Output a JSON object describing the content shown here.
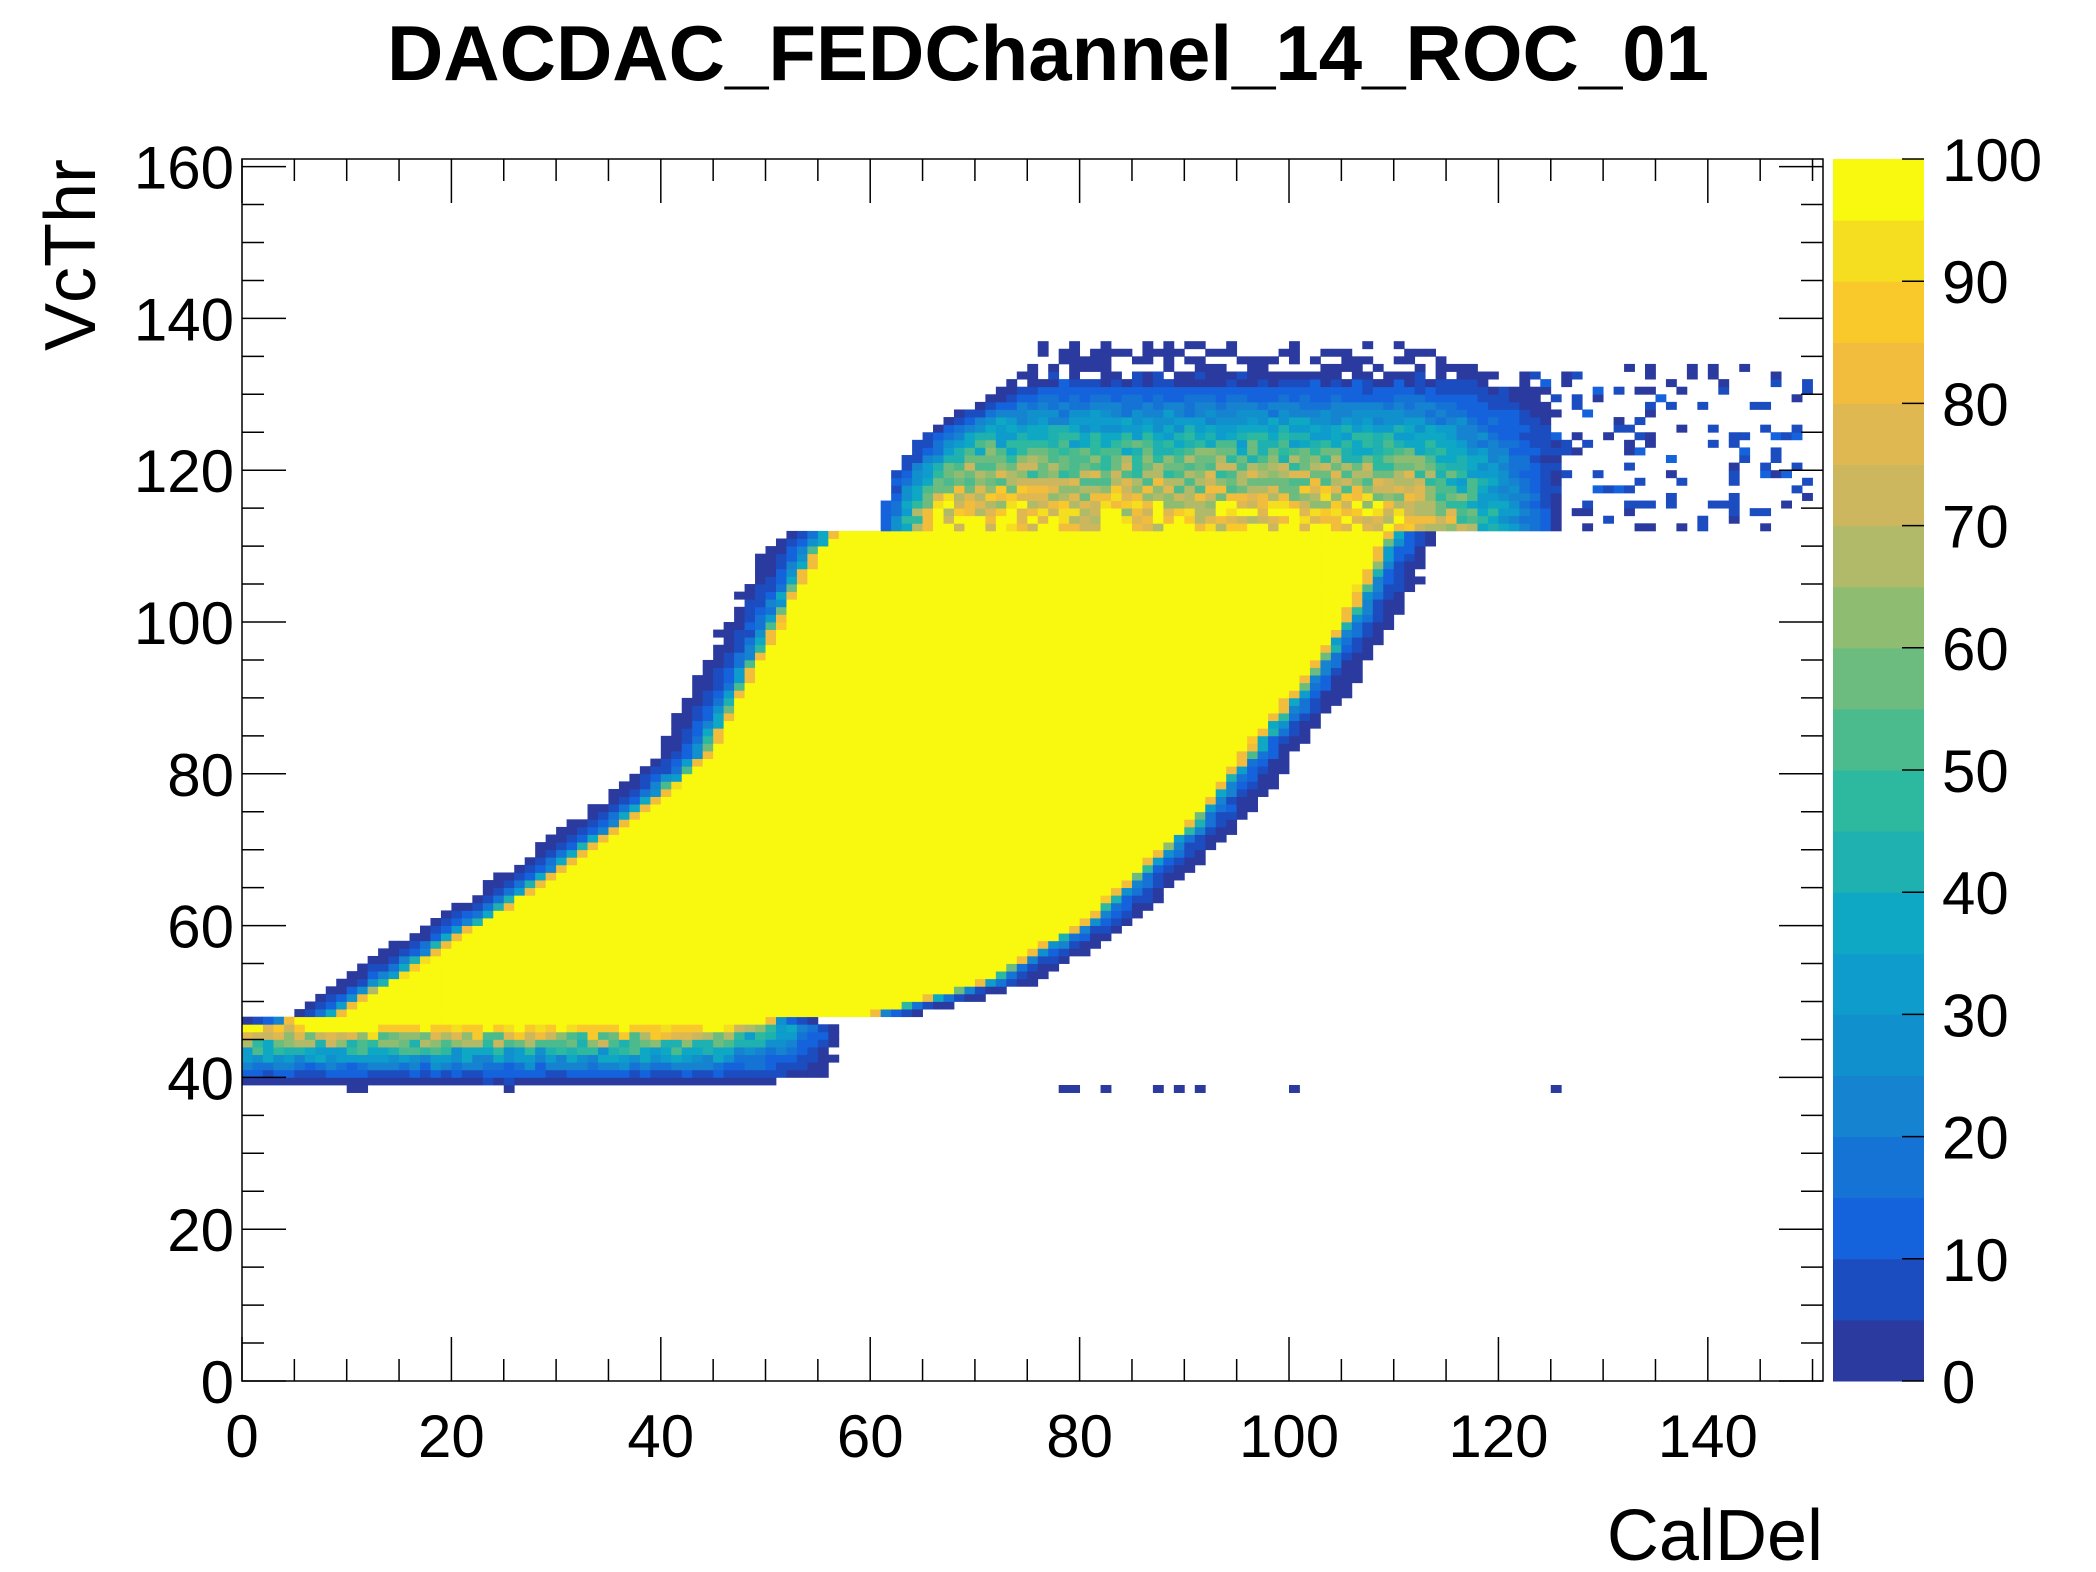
{
  "chart_data": {
    "type": "heatmap",
    "title": "DACDAC_FEDChannel_14_ROC_01",
    "xlabel": "CalDel",
    "ylabel": "VcThr",
    "xlim": [
      0,
      151
    ],
    "ylim": [
      0,
      161
    ],
    "zlim": [
      0,
      100
    ],
    "x_ticks": [
      "0",
      "20",
      "40",
      "60",
      "80",
      "100",
      "120",
      "140"
    ],
    "x_tick_values": [
      0,
      20,
      40,
      60,
      80,
      100,
      120,
      140
    ],
    "y_ticks": [
      "0",
      "20",
      "40",
      "60",
      "80",
      "100",
      "120",
      "140",
      "160"
    ],
    "y_tick_values": [
      0,
      20,
      40,
      60,
      80,
      100,
      120,
      140,
      160
    ],
    "z_ticks": [
      "0",
      "10",
      "20",
      "30",
      "40",
      "50",
      "60",
      "70",
      "80",
      "90",
      "100"
    ],
    "z_tick_values": [
      0,
      10,
      20,
      30,
      40,
      50,
      60,
      70,
      80,
      90,
      100
    ],
    "palette": [
      "#2a3a9e",
      "#1c4dc0",
      "#1462dc",
      "#1673d6",
      "#1683d0",
      "#1090cc",
      "#0d9ccb",
      "#0ea8c4",
      "#1fb0b0",
      "#2db8a0",
      "#4bbb8e",
      "#6cbb7f",
      "#8ebd72",
      "#b1ba68",
      "#cdb75e",
      "#e0b852",
      "#f2bd3d",
      "#f9c92c",
      "#f5de1f",
      "#f9f90f"
    ],
    "full_efficiency_region": {
      "value": 100,
      "y": [
        47,
        48,
        57,
        66,
        76,
        82,
        95,
        108,
        111
      ],
      "x_left": [
        5,
        10,
        20,
        30,
        40,
        45,
        50,
        55,
        57
      ],
      "x_right_y": [
        47,
        48,
        52,
        60,
        73,
        90,
        100,
        111
      ],
      "x_right": [
        50,
        60,
        70,
        80,
        90,
        100,
        105,
        109
      ]
    },
    "lower_band": {
      "y": [
        39,
        40,
        41,
        42,
        43,
        44,
        45,
        46
      ],
      "value": [
        4,
        10,
        20,
        30,
        40,
        55,
        70,
        85
      ],
      "x_range": [
        0,
        52
      ]
    },
    "plateau": {
      "y": [
        112,
        113,
        114,
        115,
        117,
        120,
        123,
        126,
        129,
        132,
        134
      ],
      "value": [
        90,
        88,
        85,
        80,
        70,
        60,
        45,
        30,
        15,
        5,
        2
      ],
      "x_left_y": [
        112,
        118,
        124,
        130
      ],
      "x_left": [
        62,
        63,
        66,
        73
      ],
      "x_full_right": 112,
      "x_fade_end": 126,
      "x_sparse_end": 150
    }
  }
}
